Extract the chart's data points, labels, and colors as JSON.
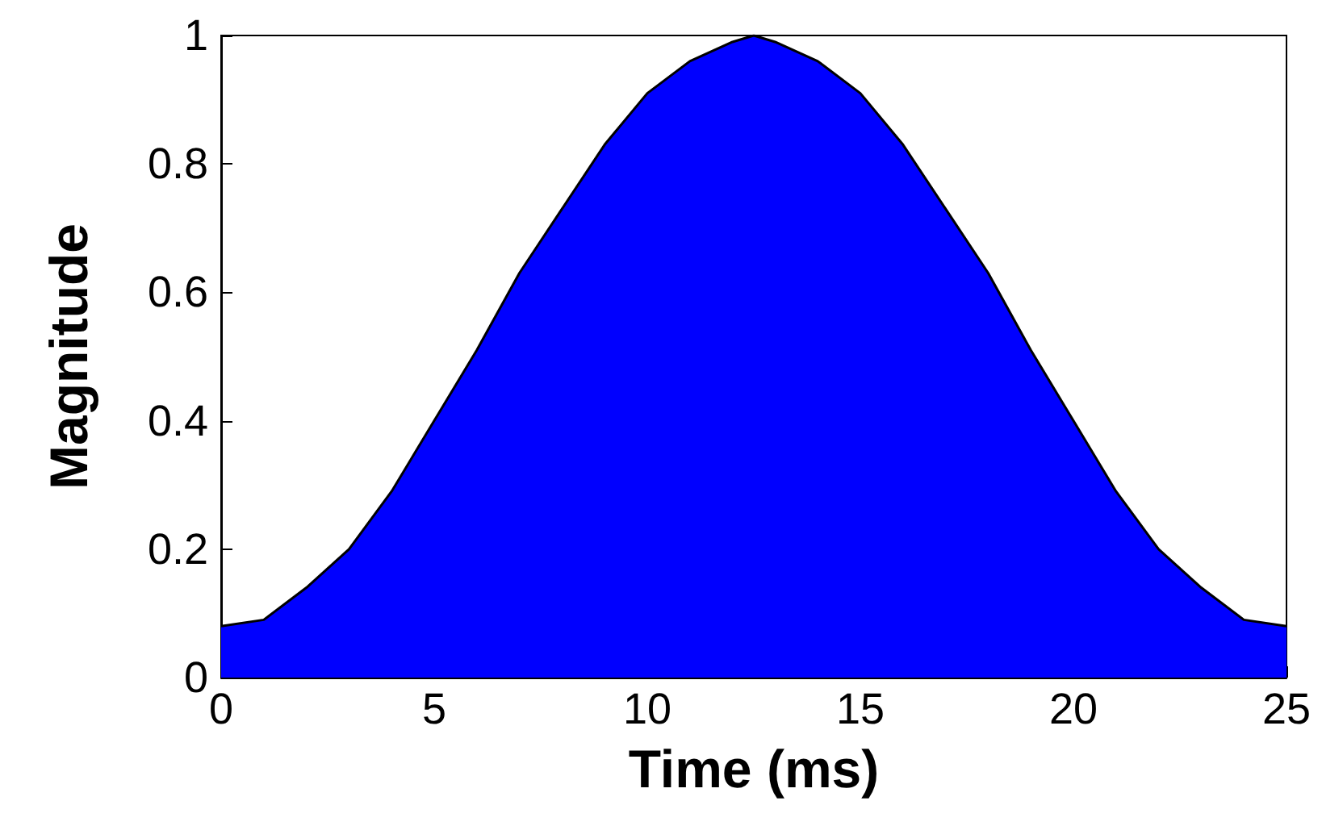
{
  "chart_data": {
    "type": "area",
    "xlabel": "Time (ms)",
    "ylabel": "Magnitude",
    "x": [
      0,
      1,
      2,
      3,
      4,
      5,
      6,
      7,
      8,
      9,
      10,
      11,
      12,
      12.5,
      13,
      14,
      15,
      16,
      17,
      18,
      19,
      20,
      21,
      22,
      23,
      24,
      25
    ],
    "series": [
      {
        "color": "#0000ff",
        "values": [
          0.08,
          0.09,
          0.14,
          0.2,
          0.29,
          0.4,
          0.51,
          0.63,
          0.73,
          0.83,
          0.91,
          0.96,
          0.99,
          1,
          0.99,
          0.96,
          0.91,
          0.83,
          0.73,
          0.63,
          0.51,
          0.4,
          0.29,
          0.2,
          0.14,
          0.09,
          0.08
        ]
      }
    ],
    "xlim": [
      0,
      25
    ],
    "xticks": [
      0,
      5,
      10,
      15,
      20,
      25
    ],
    "ylim": [
      0,
      1
    ],
    "yticks": [
      0,
      0.2,
      0.4,
      0.6,
      0.8,
      1
    ],
    "grid": false
  }
}
